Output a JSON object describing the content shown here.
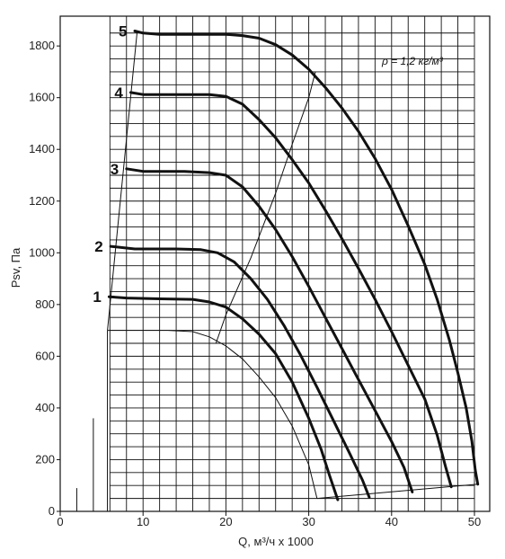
{
  "chart_data": {
    "type": "line",
    "xlabel": "Q, м³/ч х 1000",
    "ylabel": "Psv, Па",
    "xlim": [
      0,
      52
    ],
    "ylim": [
      0,
      1900
    ],
    "x_ticks": [
      0,
      10,
      20,
      30,
      40,
      50
    ],
    "y_ticks": [
      0,
      200,
      400,
      600,
      800,
      1000,
      1200,
      1400,
      1600,
      1800
    ],
    "grid": true,
    "annotation": "ρ = 1,2 кг/м³",
    "series": [
      {
        "name": "1",
        "points": [
          [
            5.9,
            830
          ],
          [
            8,
            825
          ],
          [
            12,
            822
          ],
          [
            16,
            820
          ],
          [
            18,
            810
          ],
          [
            20,
            790
          ],
          [
            22,
            745
          ],
          [
            24,
            685
          ],
          [
            26,
            610
          ],
          [
            28,
            500
          ],
          [
            30,
            360
          ],
          [
            31.5,
            240
          ],
          [
            32.5,
            140
          ],
          [
            33.5,
            45
          ]
        ]
      },
      {
        "name": "2",
        "points": [
          [
            6.1,
            1025
          ],
          [
            9,
            1015
          ],
          [
            14,
            1015
          ],
          [
            17,
            1012
          ],
          [
            19,
            1000
          ],
          [
            21,
            965
          ],
          [
            23,
            900
          ],
          [
            25,
            820
          ],
          [
            27,
            720
          ],
          [
            29,
            605
          ],
          [
            31,
            480
          ],
          [
            33,
            350
          ],
          [
            35,
            220
          ],
          [
            36.5,
            120
          ],
          [
            37.3,
            55
          ]
        ]
      },
      {
        "name": "3",
        "points": [
          [
            8,
            1325
          ],
          [
            10,
            1315
          ],
          [
            15,
            1315
          ],
          [
            18,
            1310
          ],
          [
            20,
            1300
          ],
          [
            22,
            1255
          ],
          [
            24,
            1180
          ],
          [
            26,
            1090
          ],
          [
            28,
            985
          ],
          [
            30,
            870
          ],
          [
            32,
            750
          ],
          [
            34,
            630
          ],
          [
            36,
            510
          ],
          [
            38,
            390
          ],
          [
            40,
            270
          ],
          [
            41.5,
            170
          ],
          [
            42.5,
            75
          ]
        ]
      },
      {
        "name": "4",
        "points": [
          [
            8.5,
            1620
          ],
          [
            10,
            1612
          ],
          [
            15,
            1612
          ],
          [
            18,
            1612
          ],
          [
            20,
            1605
          ],
          [
            22,
            1575
          ],
          [
            24,
            1515
          ],
          [
            26,
            1445
          ],
          [
            28,
            1360
          ],
          [
            30,
            1270
          ],
          [
            32,
            1165
          ],
          [
            34,
            1055
          ],
          [
            36,
            940
          ],
          [
            38,
            820
          ],
          [
            40,
            695
          ],
          [
            42,
            565
          ],
          [
            44,
            435
          ],
          [
            45.5,
            295
          ],
          [
            46.5,
            175
          ],
          [
            47.2,
            95
          ]
        ]
      },
      {
        "name": "5",
        "points": [
          [
            9,
            1858
          ],
          [
            10,
            1850
          ],
          [
            12,
            1845
          ],
          [
            15,
            1845
          ],
          [
            20,
            1845
          ],
          [
            22,
            1840
          ],
          [
            24,
            1830
          ],
          [
            26,
            1805
          ],
          [
            28,
            1765
          ],
          [
            30,
            1710
          ],
          [
            32,
            1640
          ],
          [
            34,
            1560
          ],
          [
            36,
            1470
          ],
          [
            38,
            1365
          ],
          [
            40,
            1245
          ],
          [
            42,
            1105
          ],
          [
            44,
            955
          ],
          [
            45.5,
            820
          ],
          [
            47,
            660
          ],
          [
            48,
            535
          ],
          [
            49,
            400
          ],
          [
            49.7,
            270
          ],
          [
            50.1,
            160
          ],
          [
            50.4,
            105
          ]
        ]
      }
    ],
    "boundary_line": [
      [
        5.7,
        700
      ],
      [
        13,
        700
      ],
      [
        16,
        695
      ],
      [
        18,
        675
      ],
      [
        20,
        640
      ],
      [
        22,
        590
      ],
      [
        24,
        520
      ],
      [
        26,
        440
      ],
      [
        28,
        330
      ],
      [
        30,
        180
      ],
      [
        31,
        50
      ]
    ],
    "bottom_line": [
      [
        31,
        50
      ],
      [
        50.4,
        105
      ]
    ],
    "left_envelope": [
      [
        5.7,
        700
      ],
      [
        9.3,
        1858
      ]
    ],
    "efficiency_line": [
      [
        18.8,
        650
      ],
      [
        20,
        760
      ],
      [
        23,
        980
      ],
      [
        26,
        1230
      ],
      [
        28,
        1420
      ],
      [
        30,
        1600
      ],
      [
        30.8,
        1700
      ]
    ],
    "baseline_marks": [
      [
        2.0,
        90
      ],
      [
        4.0,
        360
      ],
      [
        5.7,
        700
      ]
    ]
  }
}
